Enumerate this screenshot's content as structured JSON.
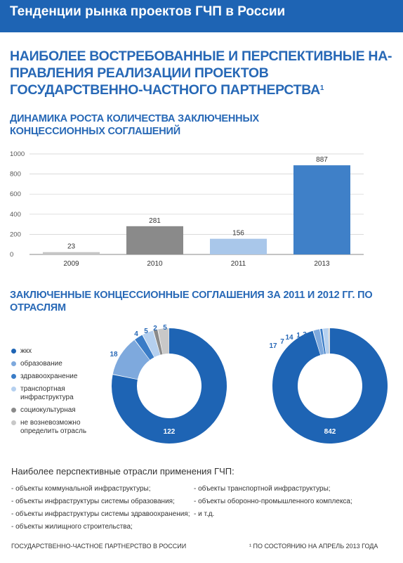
{
  "header": {
    "title": "Тенденции рынка проектов ГЧП в России"
  },
  "main_heading": {
    "text": "НАИБОЛЕЕ ВОСТРЕБОВАННЫЕ И ПЕРСПЕКТИВНЫЕ НА-ПРАВЛЕНИЯ РЕАЛИЗАЦИИ ПРОЕКТОВ ГОСУДАРСТВЕННО-ЧАСТНОГО ПАРТНЕРСТВА",
    "footnote_mark": "1"
  },
  "bar_title": "ДИНАМИКА РОСТА КОЛИЧЕСТВА ЗАКЛЮЧЕННЫХ КОНЦЕССИОННЫХ СОГЛАШЕНИЙ",
  "donut_title": "ЗАКЛЮЧЕННЫЕ КОНЦЕССИОННЫЕ СОГЛАШЕНИЯ ЗА 2011 И 2012 ГГ. ПО ОТРАСЛЯМ",
  "colors": {
    "accent": "#1e64b4",
    "bar_2009": "#c6c6c6",
    "bar_2010": "#8a8a8a",
    "bar_2011": "#a9c7ea",
    "bar_2013": "#3f80c8",
    "zhkh": "#1e64b4",
    "education": "#7ea9dd",
    "health": "#3a7cc7",
    "transport": "#b5d0ef",
    "socio": "#8a8a8a",
    "undefined": "#c8c8c8"
  },
  "chart_data": [
    {
      "type": "bar",
      "title": "ДИНАМИКА РОСТА КОЛИЧЕСТВА ЗАКЛЮЧЕННЫХ КОНЦЕССИОННЫХ СОГЛАШЕНИЙ",
      "categories": [
        "2009",
        "2010",
        "2011",
        "2013"
      ],
      "values": [
        23,
        281,
        156,
        887
      ],
      "data_labels": [
        "23",
        "281",
        "156",
        "887"
      ],
      "yticks": [
        0,
        200,
        400,
        600,
        800,
        1000
      ],
      "ylim": [
        0,
        1000
      ],
      "grid": true
    },
    {
      "type": "pie",
      "donut": true,
      "title": "ЗАКЛЮЧЕННЫЕ КОНЦЕССИОННЫЕ СОГЛАШЕНИЯ ЗА 2011 И 2012 ГГ. ПО ОТРАСЛЯМ",
      "categories": [
        "жкх",
        "образование",
        "здравоохранение",
        "транспортная инфраструктура",
        "социокультурная",
        "не возневозможно определить отрасль"
      ],
      "series": [
        {
          "values": [
            122,
            18,
            4,
            5,
            2,
            5
          ]
        },
        {
          "values": [
            842,
            17,
            7,
            14,
            1,
            3
          ]
        }
      ],
      "legend_position": "left"
    }
  ],
  "legend": [
    {
      "label": "жкх"
    },
    {
      "label": "образование"
    },
    {
      "label": "здравоохранение"
    },
    {
      "label": "транспортная инфраструктура"
    },
    {
      "label": "социокультурная"
    },
    {
      "label": "не возневозможно определить отрасль"
    }
  ],
  "perspective": {
    "title": "Наиболее перспективные отрасли применения ГЧП:",
    "left": [
      "- объекты коммунальной инфраструктуры;",
      "- объекты инфраструктуры системы образования;",
      "- объекты инфраструктуры системы здравоохранения;",
      "- объекты жилищного строительства;"
    ],
    "right": [
      "- объекты транспортной инфраструктуры;",
      "- объекты оборонно-промышленного комплекса;",
      "- и т.д."
    ]
  },
  "footer": {
    "left": "ГОСУДАРСТВЕННО-ЧАСТНОЕ ПАРТНЕРСТВО В РОССИИ",
    "right": "¹ ПО СОСТОЯНИЮ НА АПРЕЛЬ 2013 ГОДА"
  }
}
